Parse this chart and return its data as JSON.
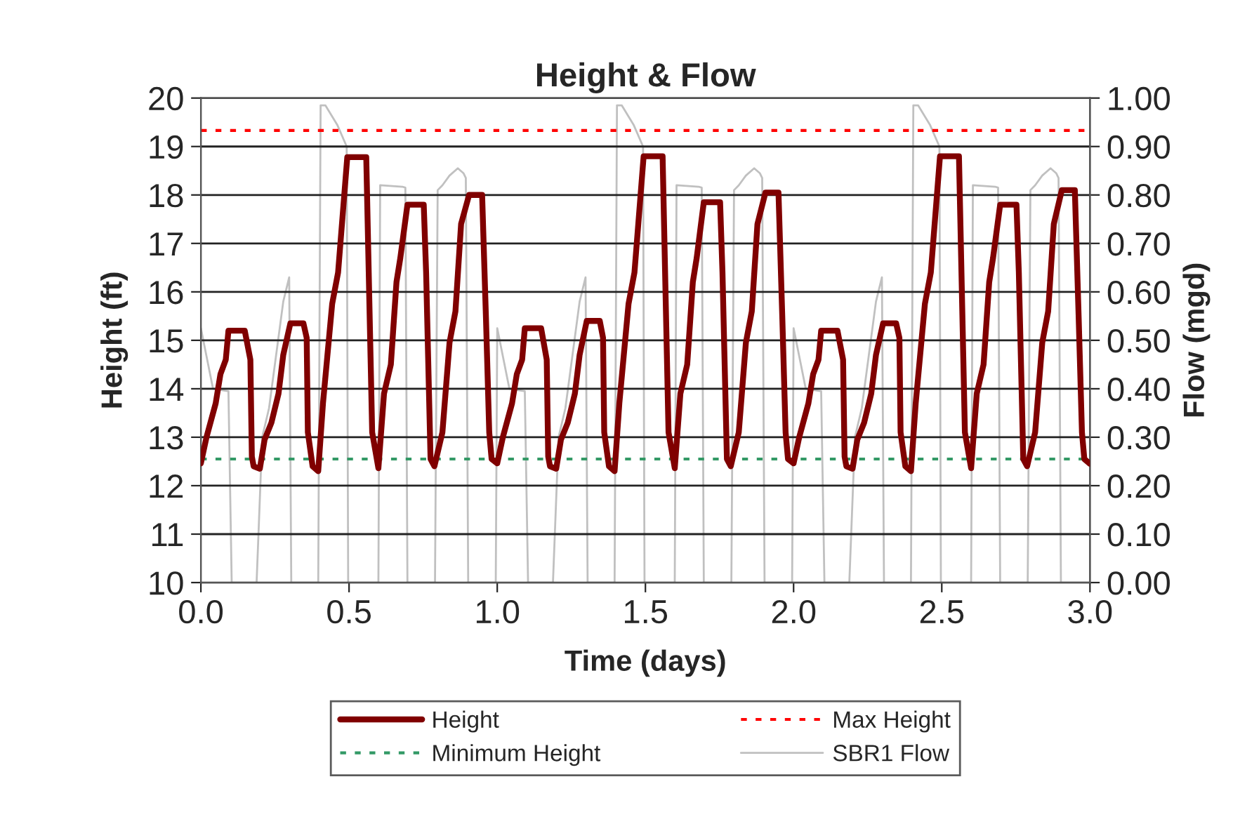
{
  "chart_data": {
    "type": "line",
    "title": "Height & Flow",
    "xlabel": "Time (days)",
    "ylabel": "Height (ft)",
    "y2label": "Flow (mgd)",
    "xlim": [
      0,
      3
    ],
    "xticks": [
      {
        "value": 0,
        "label": "0.0"
      },
      {
        "value": 0.5,
        "label": "0.5"
      },
      {
        "value": 1,
        "label": "1.0"
      },
      {
        "value": 1.5,
        "label": "1.5"
      },
      {
        "value": 2,
        "label": "2.0"
      },
      {
        "value": 2.5,
        "label": "2.5"
      },
      {
        "value": 3,
        "label": "3.0"
      }
    ],
    "ylim": [
      10,
      20
    ],
    "yticks": [
      10,
      11,
      12,
      13,
      14,
      15,
      16,
      17,
      18,
      19,
      20
    ],
    "y2lim": [
      0,
      1
    ],
    "y2ticks": [
      {
        "value": 0,
        "label": "0.00"
      },
      {
        "value": 0.1,
        "label": "0.10"
      },
      {
        "value": 0.2,
        "label": "0.20"
      },
      {
        "value": 0.3,
        "label": "0.30"
      },
      {
        "value": 0.4,
        "label": "0.40"
      },
      {
        "value": 0.5,
        "label": "0.50"
      },
      {
        "value": 0.6,
        "label": "0.60"
      },
      {
        "value": 0.7,
        "label": "0.70"
      },
      {
        "value": 0.8,
        "label": "0.80"
      },
      {
        "value": 0.9,
        "label": "0.90"
      },
      {
        "value": 1,
        "label": "1.00"
      }
    ],
    "grid": "y",
    "legend": "bottom",
    "marker": "none",
    "series": [
      {
        "name": "Height",
        "color": "#800000",
        "line_style": "solid",
        "x": [
          0.0,
          0.019,
          0.05,
          0.066,
          0.084,
          0.093,
          0.148,
          0.167,
          0.172,
          0.178,
          0.199,
          0.215,
          0.238,
          0.262,
          0.278,
          0.302,
          0.346,
          0.357,
          0.361,
          0.377,
          0.396,
          0.412,
          0.443,
          0.463,
          0.494,
          0.558,
          0.578,
          0.599,
          0.618,
          0.641,
          0.66,
          0.673,
          0.697,
          0.752,
          0.76,
          0.775,
          0.788,
          0.815,
          0.839,
          0.859,
          0.878,
          0.905,
          0.949,
          0.962,
          0.973,
          0.981,
          1.0,
          1.019,
          1.05,
          1.066,
          1.084,
          1.093,
          1.148,
          1.167,
          1.172,
          1.178,
          1.199,
          1.215,
          1.238,
          1.262,
          1.278,
          1.302,
          1.346,
          1.357,
          1.361,
          1.377,
          1.396,
          1.412,
          1.443,
          1.463,
          1.494,
          1.558,
          1.578,
          1.599,
          1.618,
          1.641,
          1.66,
          1.673,
          1.697,
          1.752,
          1.76,
          1.775,
          1.788,
          1.815,
          1.839,
          1.859,
          1.878,
          1.905,
          1.949,
          1.962,
          1.973,
          1.981,
          2.0,
          2.019,
          2.05,
          2.066,
          2.084,
          2.093,
          2.148,
          2.167,
          2.172,
          2.178,
          2.199,
          2.215,
          2.238,
          2.262,
          2.278,
          2.302,
          2.346,
          2.357,
          2.361,
          2.377,
          2.396,
          2.412,
          2.443,
          2.463,
          2.494,
          2.558,
          2.578,
          2.599,
          2.618,
          2.641,
          2.66,
          2.673,
          2.697,
          2.752,
          2.76,
          2.775,
          2.788,
          2.815,
          2.839,
          2.859,
          2.878,
          2.905,
          2.949,
          2.962,
          2.973,
          2.981,
          3.0
        ],
        "values": [
          12.46,
          13.0,
          13.7,
          14.3,
          14.6,
          15.2,
          15.2,
          14.6,
          12.6,
          12.4,
          12.35,
          12.95,
          13.3,
          13.9,
          14.7,
          15.35,
          15.35,
          15.05,
          13.1,
          12.4,
          12.3,
          13.7,
          15.75,
          16.4,
          18.78,
          18.78,
          13.1,
          12.36,
          13.9,
          14.5,
          16.2,
          16.7,
          17.8,
          17.8,
          16.4,
          12.55,
          12.4,
          13.1,
          14.95,
          15.6,
          17.4,
          18.0,
          18.0,
          15.45,
          13.1,
          12.55,
          12.46,
          13.0,
          13.7,
          14.3,
          14.6,
          15.25,
          15.25,
          14.6,
          12.6,
          12.4,
          12.35,
          12.95,
          13.3,
          13.9,
          14.7,
          15.4,
          15.4,
          15.05,
          13.1,
          12.4,
          12.3,
          13.7,
          15.75,
          16.4,
          18.8,
          18.8,
          13.1,
          12.36,
          13.9,
          14.5,
          16.2,
          16.7,
          17.85,
          17.85,
          16.4,
          12.55,
          12.4,
          13.1,
          14.95,
          15.6,
          17.4,
          18.05,
          18.05,
          15.45,
          13.1,
          12.55,
          12.46,
          13.0,
          13.7,
          14.3,
          14.6,
          15.2,
          15.2,
          14.6,
          12.6,
          12.4,
          12.35,
          12.95,
          13.3,
          13.9,
          14.7,
          15.35,
          15.35,
          15.05,
          13.1,
          12.4,
          12.3,
          13.7,
          15.75,
          16.4,
          18.8,
          18.8,
          13.1,
          12.36,
          13.9,
          14.5,
          16.2,
          16.7,
          17.8,
          17.8,
          16.4,
          12.55,
          12.4,
          13.1,
          14.95,
          15.6,
          17.4,
          18.1,
          18.1,
          15.45,
          13.1,
          12.55,
          12.45
        ]
      },
      {
        "name": "SBR1 Flow",
        "color": "#c0c0c0",
        "axis": "y2",
        "line_style": "solid",
        "x": [
          0.0,
          0.041,
          0.093,
          0.104,
          0.188,
          0.207,
          0.23,
          0.278,
          0.298,
          0.305,
          0.396,
          0.404,
          0.42,
          0.46,
          0.492,
          0.497,
          0.599,
          0.605,
          0.68,
          0.69,
          0.697,
          0.79,
          0.799,
          0.815,
          0.839,
          0.867,
          0.886,
          0.894,
          0.902,
          0.995,
          1.0,
          1.041,
          1.093,
          1.104,
          1.188,
          1.207,
          1.23,
          1.278,
          1.298,
          1.305,
          1.396,
          1.404,
          1.42,
          1.46,
          1.492,
          1.497,
          1.599,
          1.605,
          1.68,
          1.69,
          1.697,
          1.79,
          1.799,
          1.815,
          1.839,
          1.867,
          1.886,
          1.894,
          1.902,
          1.995,
          2.0,
          2.041,
          2.093,
          2.104,
          2.188,
          2.207,
          2.23,
          2.278,
          2.298,
          2.305,
          2.396,
          2.404,
          2.42,
          2.46,
          2.492,
          2.497,
          2.599,
          2.605,
          2.68,
          2.69,
          2.697,
          2.79,
          2.799,
          2.815,
          2.839,
          2.867,
          2.886,
          2.894,
          2.902,
          3.0
        ],
        "values": [
          0.525,
          0.4,
          0.395,
          0,
          0,
          0.3,
          0.36,
          0.58,
          0.63,
          0,
          0,
          0.985,
          0.985,
          0.945,
          0.9,
          0,
          0,
          0.82,
          0.817,
          0.815,
          0,
          0,
          0.81,
          0.82,
          0.84,
          0.855,
          0.845,
          0.835,
          0,
          0,
          0.525,
          0.4,
          0.395,
          0,
          0,
          0.3,
          0.36,
          0.58,
          0.63,
          0,
          0,
          0.985,
          0.985,
          0.945,
          0.9,
          0,
          0,
          0.82,
          0.817,
          0.815,
          0,
          0,
          0.81,
          0.82,
          0.84,
          0.855,
          0.845,
          0.835,
          0,
          0,
          0.525,
          0.4,
          0.395,
          0,
          0,
          0.3,
          0.36,
          0.58,
          0.63,
          0,
          0,
          0.985,
          0.985,
          0.945,
          0.9,
          0,
          0,
          0.82,
          0.817,
          0.815,
          0,
          0,
          0.81,
          0.82,
          0.84,
          0.855,
          0.845,
          0.835,
          0,
          0
        ]
      }
    ],
    "ref_lines": [
      {
        "axis": "y",
        "value": 19.33,
        "label": "Max Height",
        "color": "#ff0000",
        "line_style": "dotted"
      },
      {
        "axis": "y",
        "value": 12.55,
        "label": "Minimum Height",
        "color": "#339966",
        "line_style": "dotted"
      }
    ]
  }
}
